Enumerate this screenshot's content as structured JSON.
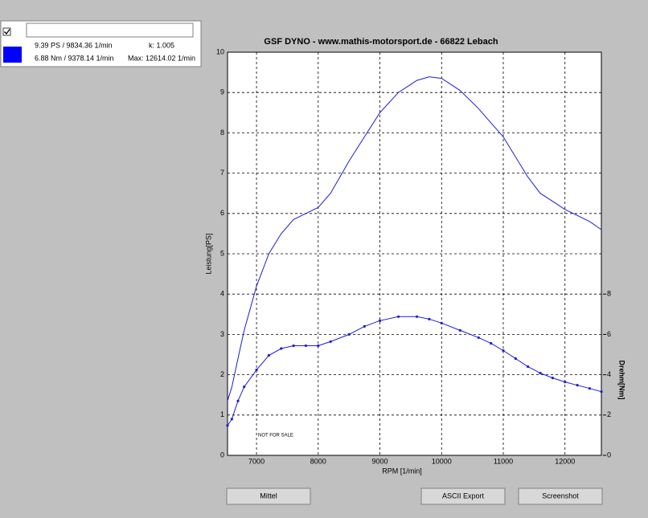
{
  "panel": {
    "readout_1": "9.39 PS / 9834.36 1/min",
    "k": "k: 1.005",
    "readout_2": "6.88 Nm / 9378.14 1/min",
    "max": "Max: 12614.02 1/min"
  },
  "chart_data": {
    "type": "line",
    "title": "GSF DYNO - www.mathis-motorsport.de - 66822 Lebach",
    "x_label": "RPM [1/min]",
    "y_label": "Leistung[PS]",
    "y2_label": "Drehm[Nm]",
    "annotation": "NOT FOR SALE",
    "x": [
      6530,
      6600,
      6700,
      6800,
      7000,
      7200,
      7400,
      7600,
      7800,
      8000,
      8200,
      8500,
      8750,
      9000,
      9300,
      9600,
      9800,
      10000,
      10300,
      10600,
      10800,
      11000,
      11200,
      11400,
      11600,
      11800,
      12000,
      12200,
      12400,
      12590
    ],
    "series": [
      {
        "color": "#1c1cd8",
        "markers": false,
        "values": [
          1.35,
          1.7,
          2.4,
          3.1,
          4.2,
          5.0,
          5.5,
          5.85,
          6.0,
          6.15,
          6.5,
          7.3,
          7.9,
          8.5,
          9.0,
          9.3,
          9.39,
          9.35,
          9.05,
          8.6,
          8.25,
          7.9,
          7.4,
          6.9,
          6.5,
          6.3,
          6.1,
          5.95,
          5.8,
          5.6
        ]
      },
      {
        "color": "#1c1cd8",
        "markers": true,
        "axis": "y2",
        "values": [
          1.48,
          1.8,
          2.7,
          3.4,
          4.24,
          4.96,
          5.3,
          5.44,
          5.44,
          5.44,
          5.64,
          6.0,
          6.4,
          6.68,
          6.88,
          6.88,
          6.76,
          6.56,
          6.2,
          5.84,
          5.56,
          5.2,
          4.8,
          4.4,
          4.08,
          3.84,
          3.64,
          3.48,
          3.32,
          3.16
        ]
      }
    ],
    "xlim": [
      6530,
      12590
    ],
    "xticks": [
      7000,
      8000,
      9000,
      10000,
      11000,
      12000
    ],
    "ylim": [
      0,
      10
    ],
    "yticks": [
      0,
      1,
      2,
      3,
      4,
      5,
      6,
      7,
      8,
      9,
      10
    ],
    "y2lim": [
      0,
      20
    ],
    "y2ticks": [
      0,
      2,
      4,
      6,
      8
    ],
    "grid": true
  },
  "buttons": [
    "Mittel",
    "ASCII Export",
    "Screenshot"
  ]
}
